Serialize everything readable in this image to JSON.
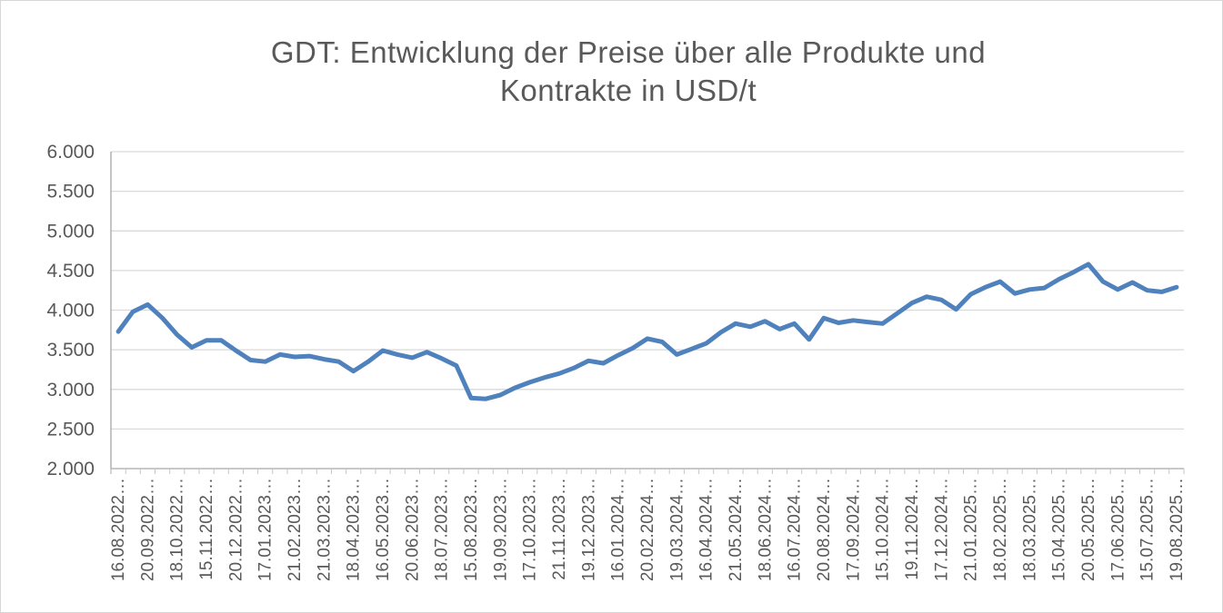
{
  "figure": {
    "background": "#FFFFFF",
    "border_color": "#D6D6D6"
  },
  "chart_data": {
    "type": "line",
    "title": "GDT: Entwicklung der Preise über alle Produkte und Kontrakte in USD/t",
    "xlabel": "",
    "ylabel": "",
    "ylim": [
      2000,
      6000
    ],
    "ytick_values": [
      6000,
      5500,
      5000,
      4500,
      4000,
      3500,
      3000,
      2500,
      2000
    ],
    "ytick_labels": [
      "6.000",
      "5.500",
      "5.000",
      "4.500",
      "4.000",
      "3.500",
      "3.000",
      "2.500",
      "2.000"
    ],
    "grid": true,
    "legend": "none",
    "x_label_every": 2,
    "x_labels": [
      "16.08.2022…",
      "20.09.2022…",
      "18.10.2022…",
      "15.11.2022…",
      "20.12.2022…",
      "17.01.2023…",
      "21.02.2023…",
      "21.03.2023…",
      "18.04.2023…",
      "16.05.2023…",
      "20.06.2023…",
      "18.07.2023…",
      "15.08.2023…",
      "19.09.2023…",
      "17.10.2023…",
      "21.11.2023…",
      "19.12.2023…",
      "16.01.2024…",
      "20.02.2024…",
      "19.03.2024…",
      "16.04.2024…",
      "21.05.2024…",
      "18.06.2024…",
      "16.07.2024…",
      "20.08.2024…",
      "17.09.2024…",
      "15.10.2024…",
      "19.11.2024…",
      "17.12.2024…",
      "21.01.2025…",
      "18.02.2025…",
      "18.03.2025…",
      "15.04.2025…",
      "20.05.2025…",
      "17.06.2025…",
      "15.07.2025…",
      "19.08.2025…"
    ],
    "values": [
      3730,
      3980,
      4070,
      3900,
      3690,
      3530,
      3620,
      3620,
      3490,
      3370,
      3350,
      3440,
      3410,
      3420,
      3380,
      3350,
      3230,
      3350,
      3490,
      3440,
      3400,
      3470,
      3390,
      3300,
      2890,
      2880,
      2930,
      3020,
      3090,
      3150,
      3200,
      3270,
      3360,
      3330,
      3430,
      3520,
      3640,
      3600,
      3440,
      3510,
      3580,
      3720,
      3830,
      3790,
      3860,
      3760,
      3830,
      3630,
      3900,
      3840,
      3870,
      3850,
      3830,
      3960,
      4090,
      4170,
      4130,
      4010,
      4200,
      4290,
      4360,
      4210,
      4260,
      4280,
      4390,
      4480,
      4580,
      4360,
      4260,
      4350,
      4250,
      4230,
      4290
    ],
    "colors": {
      "line": "#4F81BD",
      "text": "#595959",
      "gridline": "#D9D9D9",
      "axis": "#A6A6A6",
      "tick": "#C6C6C6"
    }
  }
}
